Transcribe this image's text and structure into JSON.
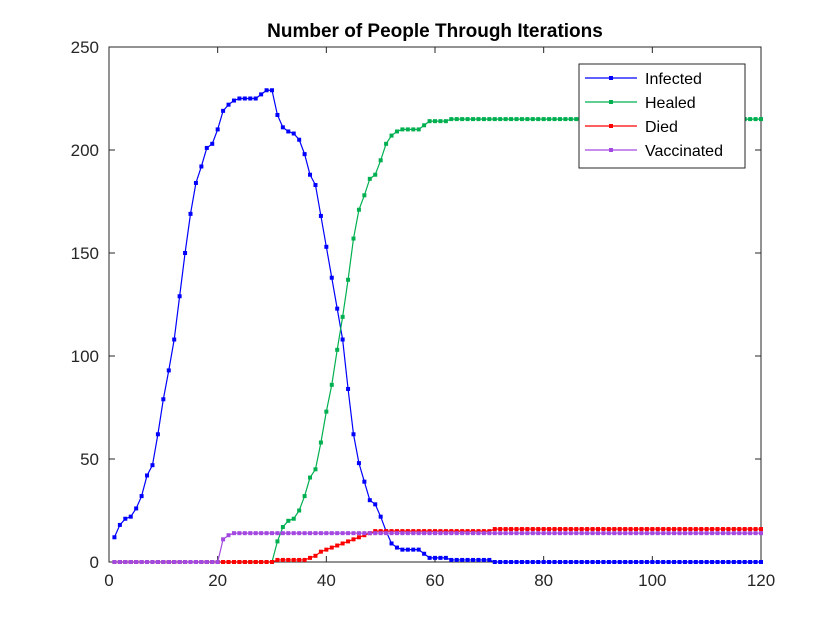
{
  "chart_data": {
    "type": "line",
    "title": "Number of People Through Iterations",
    "xlabel": "",
    "ylabel": "",
    "xlim": [
      0,
      120
    ],
    "ylim": [
      0,
      250
    ],
    "xticks": [
      0,
      20,
      40,
      60,
      80,
      100,
      120
    ],
    "yticks": [
      0,
      50,
      100,
      150,
      200,
      250
    ],
    "grid": false,
    "legend_position": "top-right",
    "series": [
      {
        "name": "Infected",
        "color": "#0000ff",
        "marker": "square",
        "x": [
          1,
          2,
          3,
          4,
          5,
          6,
          7,
          8,
          9,
          10,
          11,
          12,
          13,
          14,
          15,
          16,
          17,
          18,
          19,
          20,
          21,
          22,
          23,
          24,
          25,
          26,
          27,
          28,
          29,
          30,
          31,
          32,
          33,
          34,
          35,
          36,
          37,
          38,
          39,
          40,
          41,
          42,
          43,
          44,
          45,
          46,
          47,
          48,
          49,
          50,
          51,
          52,
          53,
          54,
          55,
          56,
          57,
          58,
          59,
          60,
          61,
          62,
          63,
          64,
          65,
          66,
          67,
          68,
          69,
          70,
          71,
          72,
          73,
          74,
          75,
          76,
          77,
          78,
          79,
          80,
          81,
          82,
          83,
          84,
          85,
          86,
          87,
          88,
          89,
          90,
          91,
          92,
          93,
          94,
          95,
          96,
          97,
          98,
          99,
          100,
          101,
          102,
          103,
          104,
          105,
          106,
          107,
          108,
          109,
          110,
          111,
          112,
          113,
          114,
          115,
          116,
          117,
          118,
          119,
          120
        ],
        "y": [
          12,
          18,
          21,
          22,
          26,
          32,
          42,
          47,
          62,
          79,
          93,
          108,
          129,
          150,
          169,
          184,
          192,
          201,
          203,
          210,
          219,
          222,
          224,
          225,
          225,
          225,
          225,
          227,
          229,
          229,
          217,
          211,
          209,
          208,
          205,
          198,
          188,
          183,
          168,
          153,
          138,
          123,
          108,
          84,
          62,
          48,
          39,
          30,
          28,
          22,
          15,
          9,
          7,
          6,
          6,
          6,
          6,
          4,
          2,
          2,
          2,
          2,
          1,
          1,
          1,
          1,
          1,
          1,
          1,
          1,
          0,
          0,
          0,
          0,
          0,
          0,
          0,
          0,
          0,
          0,
          0,
          0,
          0,
          0,
          0,
          0,
          0,
          0,
          0,
          0,
          0,
          0,
          0,
          0,
          0,
          0,
          0,
          0,
          0,
          0,
          0,
          0,
          0,
          0,
          0,
          0,
          0,
          0,
          0,
          0,
          0,
          0,
          0,
          0,
          0,
          0,
          0,
          0,
          0,
          0
        ]
      },
      {
        "name": "Healed",
        "color": "#00b050",
        "marker": "square",
        "x": [
          1,
          2,
          3,
          4,
          5,
          6,
          7,
          8,
          9,
          10,
          11,
          12,
          13,
          14,
          15,
          16,
          17,
          18,
          19,
          20,
          21,
          22,
          23,
          24,
          25,
          26,
          27,
          28,
          29,
          30,
          31,
          32,
          33,
          34,
          35,
          36,
          37,
          38,
          39,
          40,
          41,
          42,
          43,
          44,
          45,
          46,
          47,
          48,
          49,
          50,
          51,
          52,
          53,
          54,
          55,
          56,
          57,
          58,
          59,
          60,
          61,
          62,
          63,
          64,
          65,
          66,
          67,
          68,
          69,
          70,
          71,
          72,
          73,
          74,
          75,
          76,
          77,
          78,
          79,
          80,
          81,
          82,
          83,
          84,
          85,
          86,
          87,
          88,
          89,
          90,
          91,
          92,
          93,
          94,
          95,
          96,
          97,
          98,
          99,
          100,
          101,
          102,
          103,
          104,
          105,
          106,
          107,
          108,
          109,
          110,
          111,
          112,
          113,
          114,
          115,
          116,
          117,
          118,
          119,
          120
        ],
        "y": [
          0,
          0,
          0,
          0,
          0,
          0,
          0,
          0,
          0,
          0,
          0,
          0,
          0,
          0,
          0,
          0,
          0,
          0,
          0,
          0,
          0,
          0,
          0,
          0,
          0,
          0,
          0,
          0,
          0,
          0,
          10,
          17,
          20,
          21,
          25,
          32,
          41,
          45,
          58,
          73,
          86,
          103,
          119,
          137,
          157,
          171,
          178,
          186,
          188,
          195,
          203,
          207,
          209,
          210,
          210,
          210,
          210,
          212,
          214,
          214,
          214,
          214,
          215,
          215,
          215,
          215,
          215,
          215,
          215,
          215,
          215,
          215,
          215,
          215,
          215,
          215,
          215,
          215,
          215,
          215,
          215,
          215,
          215,
          215,
          215,
          215,
          215,
          215,
          215,
          215,
          215,
          215,
          215,
          215,
          215,
          215,
          215,
          215,
          215,
          215,
          215,
          215,
          215,
          215,
          215,
          215,
          215,
          215,
          215,
          215,
          215,
          215,
          215,
          215,
          215,
          215,
          215,
          215,
          215,
          215
        ]
      },
      {
        "name": "Died",
        "color": "#ff0000",
        "marker": "square",
        "x": [
          1,
          2,
          3,
          4,
          5,
          6,
          7,
          8,
          9,
          10,
          11,
          12,
          13,
          14,
          15,
          16,
          17,
          18,
          19,
          20,
          21,
          22,
          23,
          24,
          25,
          26,
          27,
          28,
          29,
          30,
          31,
          32,
          33,
          34,
          35,
          36,
          37,
          38,
          39,
          40,
          41,
          42,
          43,
          44,
          45,
          46,
          47,
          48,
          49,
          50,
          51,
          52,
          53,
          54,
          55,
          56,
          57,
          58,
          59,
          60,
          61,
          62,
          63,
          64,
          65,
          66,
          67,
          68,
          69,
          70,
          71,
          72,
          73,
          74,
          75,
          76,
          77,
          78,
          79,
          80,
          81,
          82,
          83,
          84,
          85,
          86,
          87,
          88,
          89,
          90,
          91,
          92,
          93,
          94,
          95,
          96,
          97,
          98,
          99,
          100,
          101,
          102,
          103,
          104,
          105,
          106,
          107,
          108,
          109,
          110,
          111,
          112,
          113,
          114,
          115,
          116,
          117,
          118,
          119,
          120
        ],
        "y": [
          0,
          0,
          0,
          0,
          0,
          0,
          0,
          0,
          0,
          0,
          0,
          0,
          0,
          0,
          0,
          0,
          0,
          0,
          0,
          0,
          0,
          0,
          0,
          0,
          0,
          0,
          0,
          0,
          0,
          0,
          1,
          1,
          1,
          1,
          1,
          1,
          2,
          3,
          5,
          6,
          7,
          8,
          9,
          10,
          11,
          12,
          13,
          14,
          15,
          15,
          15,
          15,
          15,
          15,
          15,
          15,
          15,
          15,
          15,
          15,
          15,
          15,
          15,
          15,
          15,
          15,
          15,
          15,
          15,
          15,
          16,
          16,
          16,
          16,
          16,
          16,
          16,
          16,
          16,
          16,
          16,
          16,
          16,
          16,
          16,
          16,
          16,
          16,
          16,
          16,
          16,
          16,
          16,
          16,
          16,
          16,
          16,
          16,
          16,
          16,
          16,
          16,
          16,
          16,
          16,
          16,
          16,
          16,
          16,
          16,
          16,
          16,
          16,
          16,
          16,
          16,
          16,
          16,
          16,
          16
        ]
      },
      {
        "name": "Vaccinated",
        "color": "#a349e0",
        "marker": "square",
        "x": [
          1,
          2,
          3,
          4,
          5,
          6,
          7,
          8,
          9,
          10,
          11,
          12,
          13,
          14,
          15,
          16,
          17,
          18,
          19,
          20,
          21,
          22,
          23,
          24,
          25,
          26,
          27,
          28,
          29,
          30,
          31,
          32,
          33,
          34,
          35,
          36,
          37,
          38,
          39,
          40,
          41,
          42,
          43,
          44,
          45,
          46,
          47,
          48,
          49,
          50,
          51,
          52,
          53,
          54,
          55,
          56,
          57,
          58,
          59,
          60,
          61,
          62,
          63,
          64,
          65,
          66,
          67,
          68,
          69,
          70,
          71,
          72,
          73,
          74,
          75,
          76,
          77,
          78,
          79,
          80,
          81,
          82,
          83,
          84,
          85,
          86,
          87,
          88,
          89,
          90,
          91,
          92,
          93,
          94,
          95,
          96,
          97,
          98,
          99,
          100,
          101,
          102,
          103,
          104,
          105,
          106,
          107,
          108,
          109,
          110,
          111,
          112,
          113,
          114,
          115,
          116,
          117,
          118,
          119,
          120
        ],
        "y": [
          0,
          0,
          0,
          0,
          0,
          0,
          0,
          0,
          0,
          0,
          0,
          0,
          0,
          0,
          0,
          0,
          0,
          0,
          0,
          0,
          11,
          13,
          14,
          14,
          14,
          14,
          14,
          14,
          14,
          14,
          14,
          14,
          14,
          14,
          14,
          14,
          14,
          14,
          14,
          14,
          14,
          14,
          14,
          14,
          14,
          14,
          14,
          14,
          14,
          14,
          14,
          14,
          14,
          14,
          14,
          14,
          14,
          14,
          14,
          14,
          14,
          14,
          14,
          14,
          14,
          14,
          14,
          14,
          14,
          14,
          14,
          14,
          14,
          14,
          14,
          14,
          14,
          14,
          14,
          14,
          14,
          14,
          14,
          14,
          14,
          14,
          14,
          14,
          14,
          14,
          14,
          14,
          14,
          14,
          14,
          14,
          14,
          14,
          14,
          14,
          14,
          14,
          14,
          14,
          14,
          14,
          14,
          14,
          14,
          14,
          14,
          14,
          14,
          14,
          14,
          14,
          14,
          14,
          14,
          14
        ]
      }
    ]
  }
}
